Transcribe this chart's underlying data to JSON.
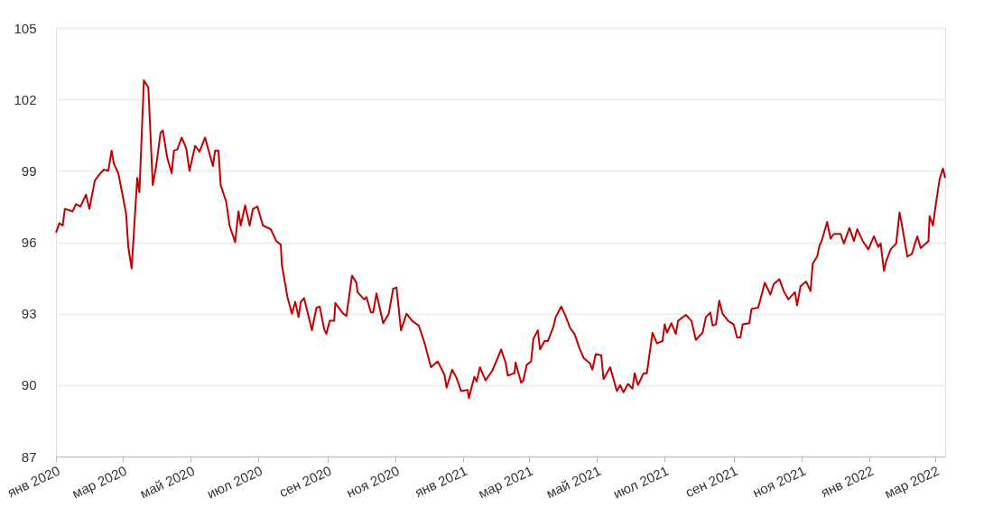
{
  "chart_data": {
    "type": "line",
    "x": [
      "2020-01-01",
      "2020-01-04",
      "2020-01-07",
      "2020-01-09",
      "2020-01-16",
      "2020-01-19",
      "2020-01-23",
      "2020-01-28",
      "2020-01-31",
      "2020-02-05",
      "2020-02-10",
      "2020-02-13",
      "2020-02-17",
      "2020-02-20",
      "2020-02-22",
      "2020-02-26",
      "2020-03-01",
      "2020-03-04",
      "2020-03-06",
      "2020-03-09",
      "2020-03-11",
      "2020-03-14",
      "2020-03-16",
      "2020-03-20",
      "2020-03-24",
      "2020-03-28",
      "2020-03-31",
      "2020-04-04",
      "2020-04-06",
      "2020-04-10",
      "2020-04-14",
      "2020-04-16",
      "2020-04-19",
      "2020-04-23",
      "2020-04-27",
      "2020-04-30",
      "2020-05-05",
      "2020-05-09",
      "2020-05-14",
      "2020-05-21",
      "2020-05-23",
      "2020-05-26",
      "2020-05-28",
      "2020-06-02",
      "2020-06-05",
      "2020-06-10",
      "2020-06-13",
      "2020-06-15",
      "2020-06-19",
      "2020-06-23",
      "2020-06-26",
      "2020-06-30",
      "2020-07-05",
      "2020-07-12",
      "2020-07-17",
      "2020-07-21",
      "2020-07-22",
      "2020-07-27",
      "2020-07-31",
      "2020-08-03",
      "2020-08-06",
      "2020-08-08",
      "2020-08-11",
      "2020-08-18",
      "2020-08-22",
      "2020-08-25",
      "2020-08-29",
      "2020-08-31",
      "2020-09-03",
      "2020-09-07",
      "2020-09-08",
      "2020-09-15",
      "2020-09-18",
      "2020-09-23",
      "2020-09-27",
      "2020-09-28",
      "2020-10-04",
      "2020-10-06",
      "2020-10-10",
      "2020-10-12",
      "2020-10-15",
      "2020-10-21",
      "2020-10-26",
      "2020-10-30",
      "2020-11-02",
      "2020-11-06",
      "2020-11-11",
      "2020-11-16",
      "2020-11-22",
      "2020-11-27",
      "2020-12-03",
      "2020-12-09",
      "2020-12-15",
      "2020-12-17",
      "2020-12-22",
      "2020-12-26",
      "2020-12-30",
      "2021-01-05",
      "2021-01-06",
      "2021-01-11",
      "2021-01-13",
      "2021-01-16",
      "2021-01-21",
      "2021-01-27",
      "2021-02-01",
      "2021-02-04",
      "2021-02-08",
      "2021-02-10",
      "2021-02-16",
      "2021-02-17",
      "2021-02-22",
      "2021-02-24",
      "2021-02-27",
      "2021-03-03",
      "2021-03-05",
      "2021-03-09",
      "2021-03-11",
      "2021-03-15",
      "2021-03-18",
      "2021-03-23",
      "2021-03-25",
      "2021-03-30",
      "2021-04-03",
      "2021-04-07",
      "2021-04-11",
      "2021-04-15",
      "2021-04-19",
      "2021-04-25",
      "2021-04-27",
      "2021-04-30",
      "2021-05-05",
      "2021-05-07",
      "2021-05-13",
      "2021-05-16",
      "2021-05-19",
      "2021-05-22",
      "2021-05-25",
      "2021-05-29",
      "2021-06-02",
      "2021-06-04",
      "2021-06-07",
      "2021-06-12",
      "2021-06-15",
      "2021-06-20",
      "2021-06-24",
      "2021-06-29",
      "2021-07-01",
      "2021-07-03",
      "2021-07-07",
      "2021-07-11",
      "2021-07-13",
      "2021-07-20",
      "2021-07-25",
      "2021-07-29",
      "2021-08-04",
      "2021-08-07",
      "2021-08-11",
      "2021-08-13",
      "2021-08-16",
      "2021-08-19",
      "2021-08-22",
      "2021-08-27",
      "2021-09-01",
      "2021-09-04",
      "2021-09-07",
      "2021-09-09",
      "2021-09-15",
      "2021-09-17",
      "2021-09-23",
      "2021-09-29",
      "2021-10-04",
      "2021-10-07",
      "2021-10-12",
      "2021-10-16",
      "2021-10-20",
      "2021-10-26",
      "2021-10-28",
      "2021-10-31",
      "2021-11-05",
      "2021-11-09",
      "2021-11-11",
      "2021-11-15",
      "2021-11-17",
      "2021-11-19",
      "2021-11-24",
      "2021-11-27",
      "2021-11-30",
      "2021-12-06",
      "2021-12-09",
      "2021-12-14",
      "2021-12-18",
      "2021-12-21",
      "2021-12-26",
      "2021-12-31",
      "2022-01-05",
      "2022-01-09",
      "2022-01-11",
      "2022-01-14",
      "2022-01-16",
      "2022-01-20",
      "2022-01-25",
      "2022-01-28",
      "2022-01-31",
      "2022-02-04",
      "2022-02-08",
      "2022-02-13",
      "2022-02-16",
      "2022-02-23",
      "2022-02-24",
      "2022-02-27",
      "2022-03-01",
      "2022-03-05",
      "2022-03-08",
      "2022-03-10"
    ],
    "series": [
      {
        "color": "#c00000",
        "values": [
          96.4,
          96.8,
          96.7,
          97.4,
          97.3,
          97.6,
          97.5,
          98.0,
          97.4,
          98.6,
          98.9,
          99.05,
          99.0,
          99.85,
          99.3,
          98.9,
          97.95,
          97.2,
          95.8,
          94.9,
          96.4,
          98.7,
          98.1,
          102.8,
          102.5,
          98.4,
          99.2,
          100.6,
          100.7,
          99.55,
          98.9,
          99.85,
          99.9,
          100.4,
          99.95,
          99.0,
          100.05,
          99.8,
          100.4,
          99.2,
          99.85,
          99.85,
          98.4,
          97.7,
          96.7,
          96.0,
          97.3,
          96.7,
          97.55,
          96.7,
          97.4,
          97.5,
          96.7,
          96.55,
          96.05,
          95.9,
          95.05,
          93.7,
          93.0,
          93.5,
          92.85,
          93.5,
          93.65,
          92.3,
          93.25,
          93.3,
          92.35,
          92.15,
          92.7,
          92.7,
          93.45,
          93.0,
          92.9,
          94.6,
          94.3,
          93.9,
          93.6,
          93.7,
          93.05,
          93.05,
          93.85,
          92.6,
          93.0,
          94.05,
          94.1,
          92.3,
          93.0,
          92.7,
          92.5,
          91.8,
          90.75,
          91.0,
          90.45,
          89.9,
          90.65,
          90.3,
          89.75,
          89.8,
          89.45,
          90.35,
          90.15,
          90.75,
          90.2,
          90.6,
          91.15,
          91.5,
          90.95,
          90.4,
          90.5,
          90.95,
          90.1,
          90.2,
          90.85,
          91.0,
          91.95,
          92.3,
          91.5,
          91.85,
          91.85,
          92.45,
          92.85,
          93.3,
          92.9,
          92.4,
          92.15,
          91.6,
          91.15,
          90.9,
          90.65,
          91.3,
          91.25,
          90.25,
          90.75,
          90.25,
          89.75,
          90.0,
          89.7,
          90.05,
          89.85,
          90.5,
          90.0,
          90.5,
          90.5,
          92.2,
          91.75,
          91.85,
          92.55,
          92.2,
          92.6,
          92.15,
          92.7,
          92.95,
          92.7,
          91.9,
          92.2,
          92.85,
          93.05,
          92.5,
          92.55,
          93.55,
          93.0,
          92.7,
          92.55,
          92.0,
          92.0,
          92.55,
          92.6,
          93.2,
          93.25,
          94.3,
          93.8,
          94.25,
          94.45,
          93.95,
          93.6,
          93.9,
          93.35,
          94.15,
          94.35,
          93.95,
          95.1,
          95.4,
          95.85,
          96.05,
          96.85,
          96.15,
          96.35,
          96.35,
          95.95,
          96.6,
          96.05,
          96.55,
          96.05,
          95.7,
          96.25,
          95.8,
          95.95,
          94.8,
          95.2,
          95.7,
          95.95,
          97.25,
          96.5,
          95.4,
          95.5,
          96.25,
          95.75,
          96.05,
          97.1,
          96.7,
          97.4,
          98.65,
          99.1,
          98.7
        ]
      }
    ],
    "xlim": [
      "2020-01-01",
      "2022-03-10"
    ],
    "xticks": [
      {
        "value": "2020-01",
        "label": "янв 2020"
      },
      {
        "value": "2020-03",
        "label": "мар 2020"
      },
      {
        "value": "2020-05",
        "label": "май 2020"
      },
      {
        "value": "2020-07",
        "label": "июл 2020"
      },
      {
        "value": "2020-09",
        "label": "сен 2020"
      },
      {
        "value": "2020-11",
        "label": "ноя 2020"
      },
      {
        "value": "2021-01",
        "label": "янв 2021"
      },
      {
        "value": "2021-03",
        "label": "мар 2021"
      },
      {
        "value": "2021-05",
        "label": "май 2021"
      },
      {
        "value": "2021-07",
        "label": "июл 2021"
      },
      {
        "value": "2021-09",
        "label": "сен 2021"
      },
      {
        "value": "2021-11",
        "label": "ноя 2021"
      },
      {
        "value": "2022-01",
        "label": "янв 2022"
      },
      {
        "value": "2022-03",
        "label": "мар 2022"
      }
    ],
    "ylim": [
      87,
      105
    ],
    "yticks": [
      87,
      90,
      93,
      96,
      99,
      102,
      105
    ],
    "grid": "y",
    "legend": false,
    "marker": "none",
    "line_style": "solid"
  }
}
